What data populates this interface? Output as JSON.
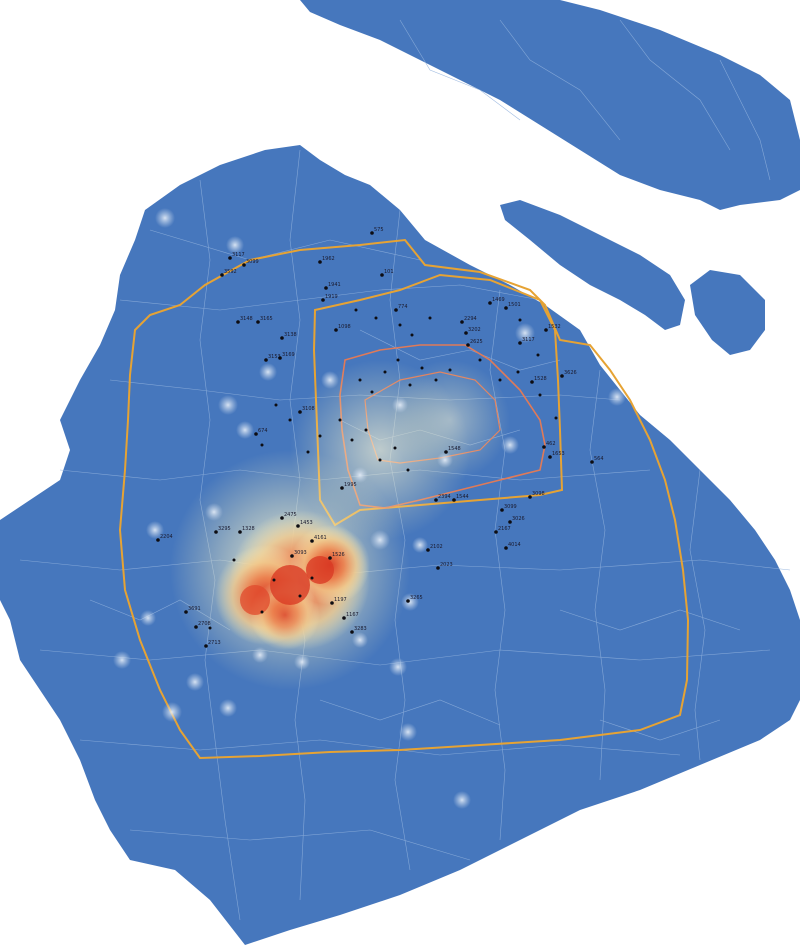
{
  "colors": {
    "background": "#ffffff",
    "land": "#4677bd",
    "boundary": "#7fa3d6",
    "outer_ring_road": "#e6a334",
    "middle_ring_road": "#e6a334",
    "inner_ring_road": "#e07a58",
    "point": "#0d0d12",
    "heat_low": "#f4eeb8",
    "heat_mid": "#f1c17d",
    "heat_high": "#e04a2c",
    "halo": "#c6d6ea"
  },
  "map": {
    "layers": [
      "district-boundaries",
      "ring-roads",
      "heat-density",
      "sample-points"
    ],
    "heat_hotspot": "southwest-of-center"
  },
  "points": [
    {
      "id": "p1",
      "label": "3117"
    },
    {
      "id": "p2",
      "label": "3592"
    },
    {
      "id": "p3",
      "label": "3099"
    },
    {
      "id": "p4",
      "label": "1962"
    },
    {
      "id": "p5",
      "label": "575"
    },
    {
      "id": "p6",
      "label": "101"
    },
    {
      "id": "p7",
      "label": "1941"
    },
    {
      "id": "p8",
      "label": "1919"
    },
    {
      "id": "p9",
      "label": "3148"
    },
    {
      "id": "p10",
      "label": "3165"
    },
    {
      "id": "p11",
      "label": "3138"
    },
    {
      "id": "p12",
      "label": "1098"
    },
    {
      "id": "p13",
      "label": "774"
    },
    {
      "id": "p14",
      "label": "2294"
    },
    {
      "id": "p15",
      "label": "3202"
    },
    {
      "id": "p16",
      "label": "1469"
    },
    {
      "id": "p17",
      "label": "1501"
    },
    {
      "id": "p18",
      "label": "1532"
    },
    {
      "id": "p19",
      "label": "3117"
    },
    {
      "id": "p20",
      "label": "2625"
    },
    {
      "id": "p21",
      "label": "3626"
    },
    {
      "id": "p22",
      "label": "1528"
    },
    {
      "id": "p23",
      "label": "1548"
    },
    {
      "id": "p24",
      "label": "564"
    },
    {
      "id": "p25",
      "label": "462"
    },
    {
      "id": "p26",
      "label": "1653"
    },
    {
      "id": "p27",
      "label": "2394"
    },
    {
      "id": "p28",
      "label": "1544"
    },
    {
      "id": "p29",
      "label": "3098"
    },
    {
      "id": "p30",
      "label": "3099"
    },
    {
      "id": "p31",
      "label": "3026"
    },
    {
      "id": "p32",
      "label": "2167"
    },
    {
      "id": "p33",
      "label": "4014"
    },
    {
      "id": "p34",
      "label": "2102"
    },
    {
      "id": "p35",
      "label": "2023"
    },
    {
      "id": "p36",
      "label": "2475"
    },
    {
      "id": "p37",
      "label": "1453"
    },
    {
      "id": "p38",
      "label": "3093"
    },
    {
      "id": "p39",
      "label": "1526"
    },
    {
      "id": "p40",
      "label": "3295"
    },
    {
      "id": "p41",
      "label": "1328"
    },
    {
      "id": "p42",
      "label": "2204"
    },
    {
      "id": "p43",
      "label": "3691"
    },
    {
      "id": "p44",
      "label": "2708"
    },
    {
      "id": "p45",
      "label": "2713"
    },
    {
      "id": "p46",
      "label": "1197"
    },
    {
      "id": "p47",
      "label": "1167"
    },
    {
      "id": "p48",
      "label": "3283"
    },
    {
      "id": "p49",
      "label": "1995"
    },
    {
      "id": "p50",
      "label": "3265"
    },
    {
      "id": "p51",
      "label": "3108"
    },
    {
      "id": "p52",
      "label": "3153"
    },
    {
      "id": "p53",
      "label": "3169"
    },
    {
      "id": "p54",
      "label": "674"
    },
    {
      "id": "p55",
      "label": "4161"
    }
  ]
}
